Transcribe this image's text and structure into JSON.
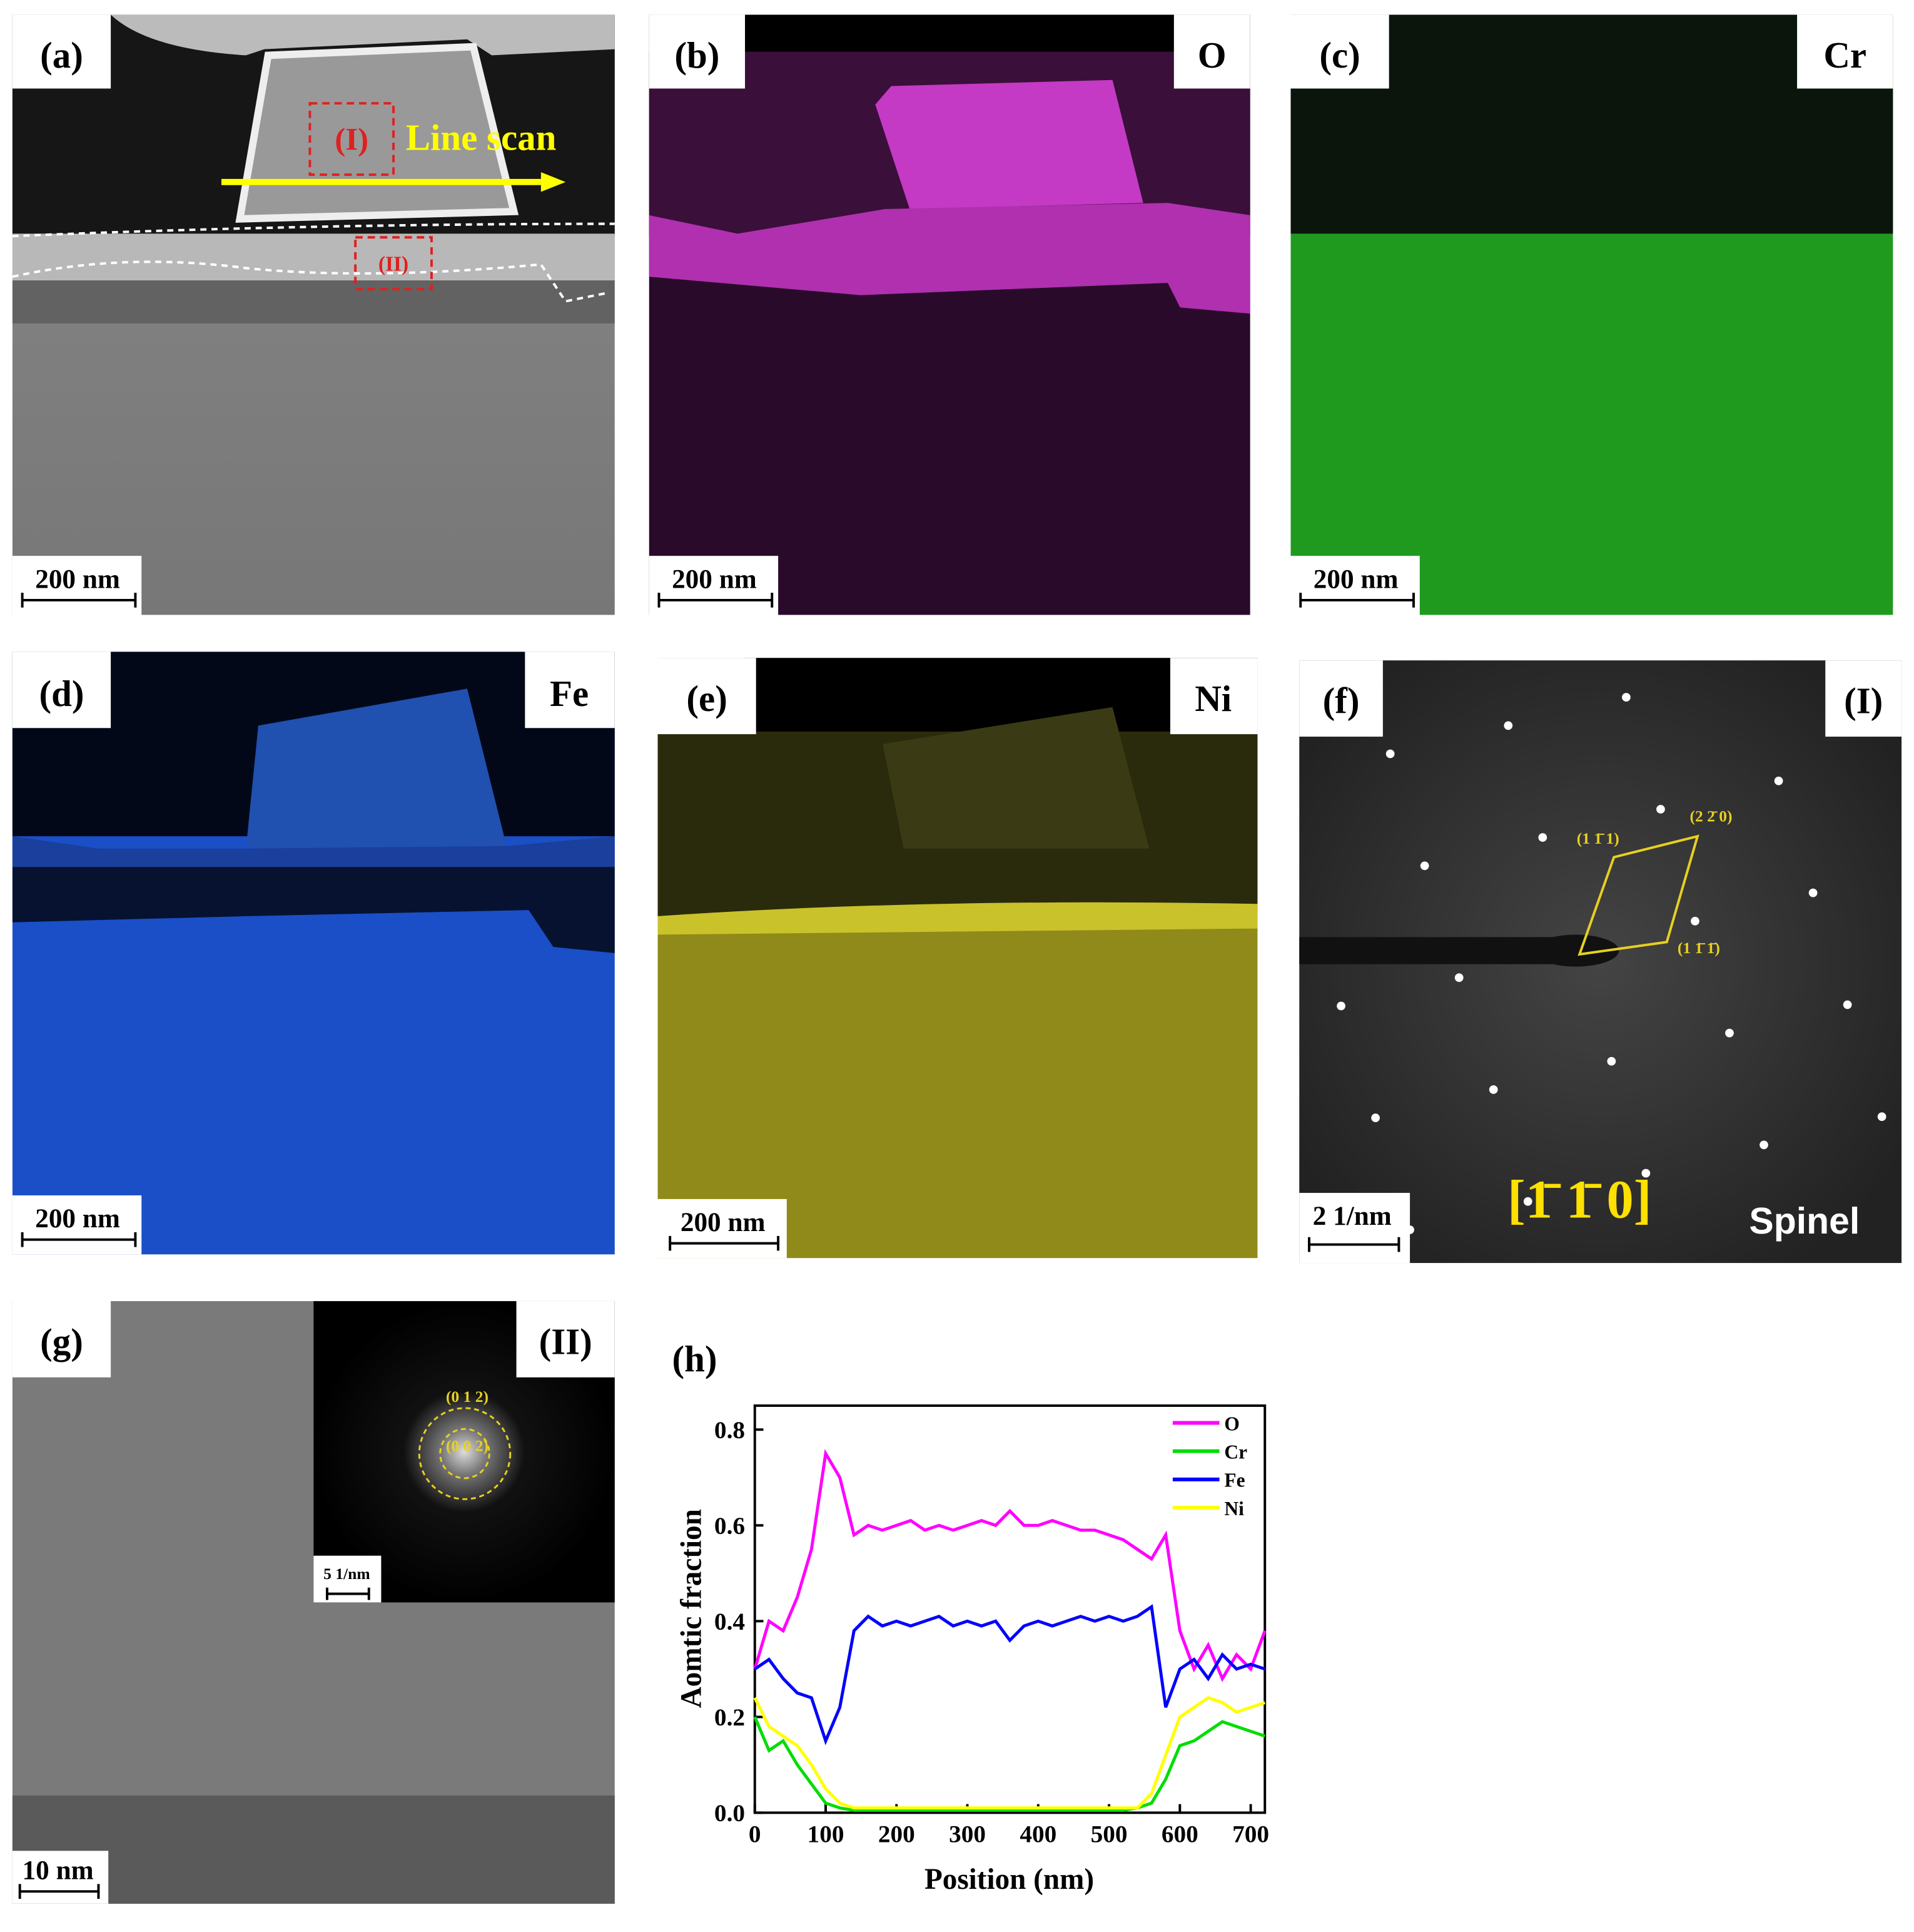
{
  "panels": {
    "a": {
      "label": "(a)",
      "line_scan": "Line scan",
      "region_1": "(I)",
      "region_2": "(II)",
      "scale_bar": "200 nm"
    },
    "b": {
      "label": "(b)",
      "element": "O",
      "scale_bar": "200 nm"
    },
    "c": {
      "label": "(c)",
      "element": "Cr",
      "scale_bar": "200 nm"
    },
    "d": {
      "label": "(d)",
      "element": "Fe",
      "scale_bar": "200 nm"
    },
    "e": {
      "label": "(e)",
      "element": "Ni",
      "scale_bar": "200 nm"
    },
    "f": {
      "label": "(f)",
      "region": "(I)",
      "spot_1": "(1 1̄ 1)",
      "spot_2": "(2 2̄ 0)",
      "spot_3": "(1 1̄ 1̄)",
      "zone_axis": "[1̄ 1̄ 0]",
      "phase": "Spinel",
      "scale_bar": "2 1/nm"
    },
    "g": {
      "label": "(g)",
      "region": "(II)",
      "ring_1": "(0 1 2)",
      "ring_2": "(0 0 2)",
      "inset_scale_bar": "5 1/nm",
      "scale_bar": "10 nm"
    },
    "h": {
      "label": "(h)"
    }
  },
  "chart_data": {
    "type": "line",
    "xlabel": "Position (nm)",
    "ylabel": "Aomtic fraction",
    "x": [
      0,
      20,
      40,
      60,
      80,
      100,
      120,
      140,
      160,
      180,
      200,
      220,
      240,
      260,
      280,
      300,
      320,
      340,
      360,
      380,
      400,
      420,
      440,
      460,
      480,
      500,
      520,
      540,
      560,
      580,
      600,
      620,
      640,
      660,
      680,
      700,
      720
    ],
    "series": [
      {
        "name": "O",
        "color": "#ff00ff",
        "values": [
          0.3,
          0.4,
          0.38,
          0.45,
          0.55,
          0.75,
          0.7,
          0.58,
          0.6,
          0.59,
          0.6,
          0.61,
          0.59,
          0.6,
          0.59,
          0.6,
          0.61,
          0.6,
          0.63,
          0.6,
          0.6,
          0.61,
          0.6,
          0.59,
          0.59,
          0.58,
          0.57,
          0.55,
          0.53,
          0.58,
          0.38,
          0.3,
          0.35,
          0.28,
          0.33,
          0.3,
          0.38
        ]
      },
      {
        "name": "Cr",
        "color": "#00dd00",
        "values": [
          0.2,
          0.13,
          0.15,
          0.1,
          0.06,
          0.02,
          0.01,
          0.005,
          0.005,
          0.005,
          0.005,
          0.005,
          0.005,
          0.005,
          0.005,
          0.005,
          0.005,
          0.005,
          0.005,
          0.005,
          0.005,
          0.005,
          0.005,
          0.005,
          0.005,
          0.005,
          0.005,
          0.01,
          0.02,
          0.07,
          0.14,
          0.15,
          0.17,
          0.19,
          0.18,
          0.17,
          0.16
        ]
      },
      {
        "name": "Fe",
        "color": "#0000ff",
        "values": [
          0.3,
          0.32,
          0.28,
          0.25,
          0.24,
          0.15,
          0.22,
          0.38,
          0.41,
          0.39,
          0.4,
          0.39,
          0.4,
          0.41,
          0.39,
          0.4,
          0.39,
          0.4,
          0.36,
          0.39,
          0.4,
          0.39,
          0.4,
          0.41,
          0.4,
          0.41,
          0.4,
          0.41,
          0.43,
          0.22,
          0.3,
          0.32,
          0.28,
          0.33,
          0.3,
          0.31,
          0.3
        ]
      },
      {
        "name": "Ni",
        "color": "#ffff00",
        "values": [
          0.24,
          0.18,
          0.16,
          0.14,
          0.1,
          0.05,
          0.02,
          0.01,
          0.01,
          0.01,
          0.01,
          0.01,
          0.01,
          0.01,
          0.01,
          0.01,
          0.01,
          0.01,
          0.01,
          0.01,
          0.01,
          0.01,
          0.01,
          0.01,
          0.01,
          0.01,
          0.01,
          0.01,
          0.04,
          0.12,
          0.2,
          0.22,
          0.24,
          0.23,
          0.21,
          0.22,
          0.23
        ]
      }
    ],
    "xlim": [
      0,
      720
    ],
    "ylim": [
      0,
      0.85
    ],
    "xticks": [
      0,
      100,
      200,
      300,
      400,
      500,
      600,
      700
    ],
    "yticks": [
      {
        "value": 0,
        "label": "0.0"
      },
      0.2,
      0.4,
      0.6,
      0.8
    ],
    "legend": "upper right"
  }
}
